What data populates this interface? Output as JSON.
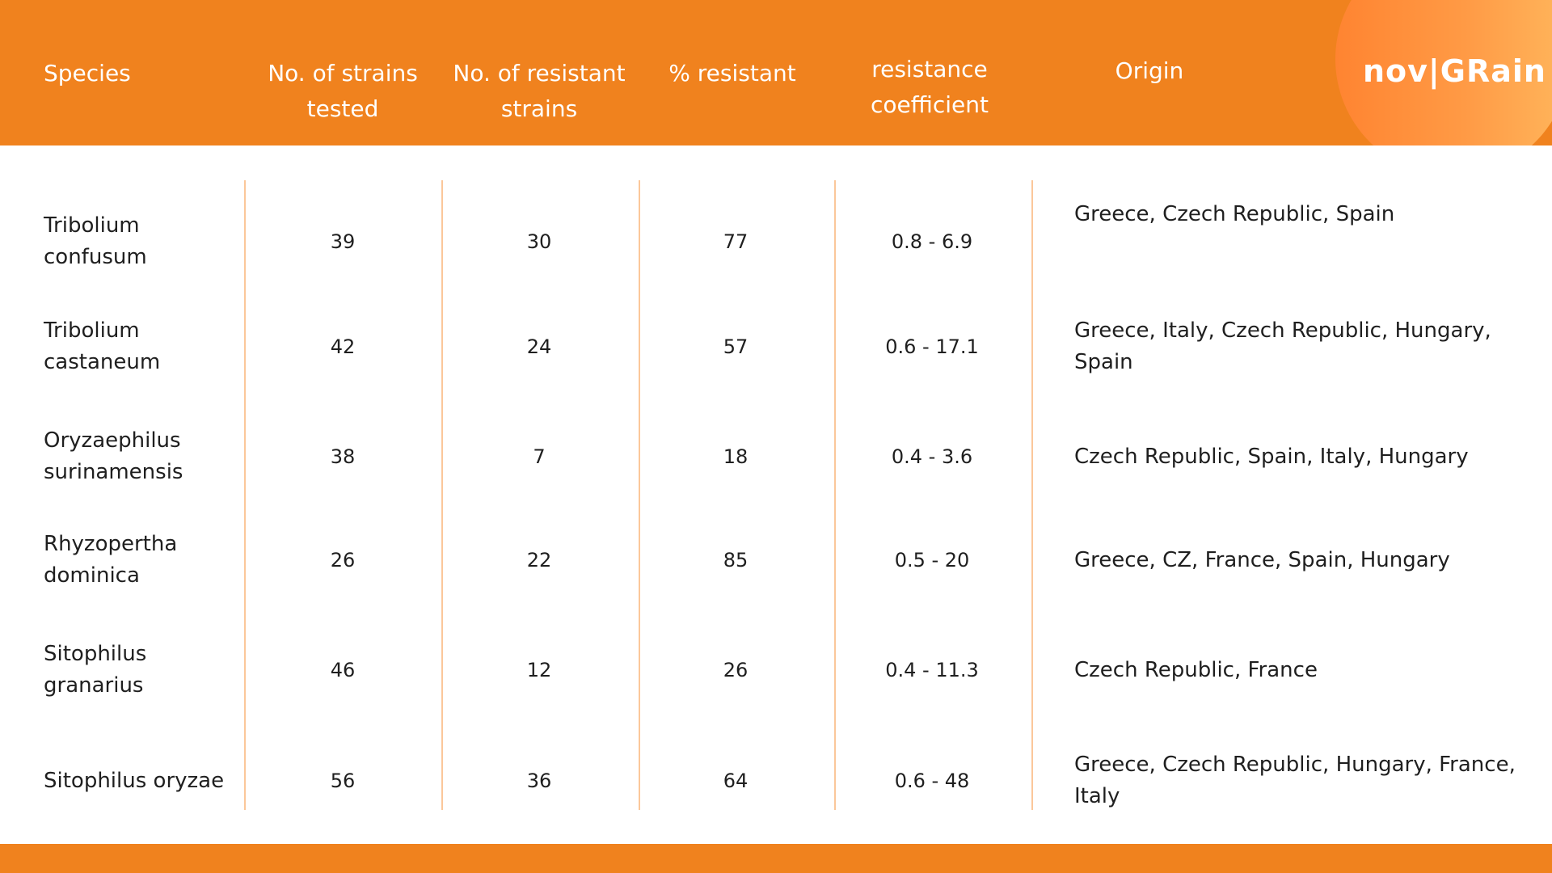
{
  "header": {
    "columns": [
      "Species",
      "No. of strains tested",
      "No. of resistant strains",
      "% resistant",
      "resistance coefficient",
      "Origin"
    ],
    "logo": "nov|GRain"
  },
  "table": {
    "rows": [
      [
        "Tribolium confusum",
        39,
        30,
        77,
        "0.8 - 6.9",
        "Greece, Czech Republic, Spain"
      ],
      [
        "Tribolium castaneum",
        42,
        24,
        57,
        "0.6 - 17.1",
        "Greece, Italy, Czech Republic, Hungary, Spain"
      ],
      [
        "Oryzaephilus surinamensis",
        38,
        7,
        18,
        "0.4 - 3.6",
        "Czech Republic, Spain, Italy, Hungary"
      ],
      [
        "Rhyzopertha dominica",
        26,
        22,
        85,
        "0.5 - 20",
        "Greece, CZ, France, Spain, Hungary"
      ],
      [
        "Sitophilus granarius",
        46,
        12,
        26,
        "0.4 - 11.3",
        "Czech Republic, France"
      ],
      [
        "Sitophilus oryzae",
        56,
        36,
        64,
        "0.6 - 48",
        "Greece, Czech Republic, Hungary, France, Italy"
      ]
    ]
  }
}
